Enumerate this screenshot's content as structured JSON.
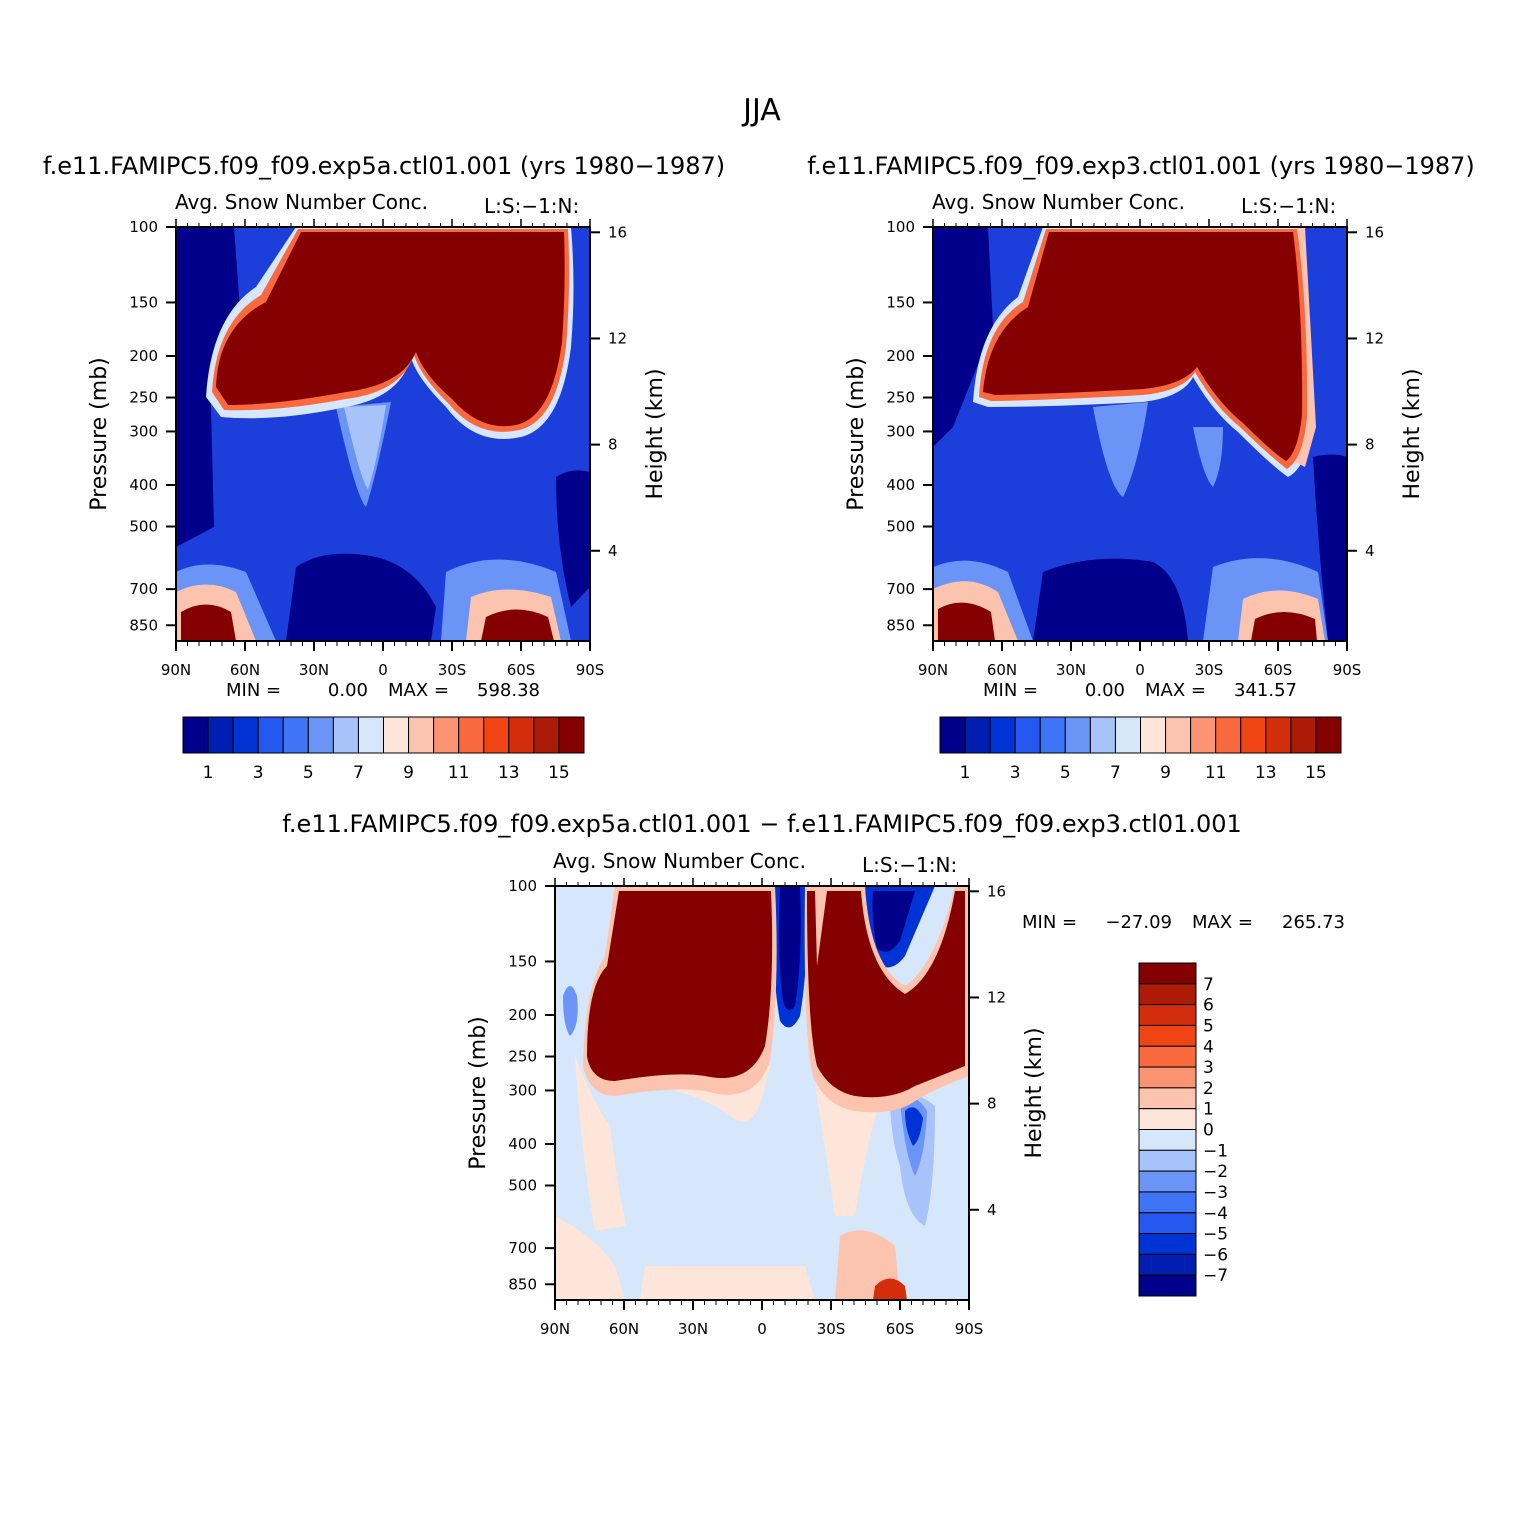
{
  "figure": {
    "season_title": "JJA",
    "diff_title": "f.e11.FAMIPC5.f09_f09.exp5a.ctl01.001 − f.e11.FAMIPC5.f09_f09.exp3.ctl01.001"
  },
  "colors": {
    "abs_scale": [
      "#00008b",
      "#001fb0",
      "#0033d6",
      "#2458f0",
      "#3e74f5",
      "#6b94f7",
      "#a8c2fa",
      "#d6e6fb",
      "#fde6d9",
      "#fcc4ae",
      "#fa9473",
      "#f86a3e",
      "#f04414",
      "#d42d0c",
      "#ac1a08",
      "#850000"
    ],
    "diff_scale": [
      "#00008b",
      "#001fb0",
      "#0033d6",
      "#2458f0",
      "#3e74f5",
      "#6b94f7",
      "#a8c2fa",
      "#d6e6fb",
      "#fde6d9",
      "#fcc4ae",
      "#fa9473",
      "#f86a3e",
      "#f04414",
      "#d42d0c",
      "#ac1a08",
      "#850000"
    ]
  },
  "chart_data": [
    {
      "type": "contour",
      "run_title": "f.e11.FAMIPC5.f09_f09.exp5a.ctl01.001 (yrs 1980−1987)",
      "variable_label": "Avg. Snow Number Conc.",
      "units_label": "L:S:−1:N:",
      "xlabel": "",
      "ylabel": "Pressure (mb)",
      "y2label": "Height (km)",
      "x_ticks": [
        "90N",
        "60N",
        "30N",
        "0",
        "30S",
        "60S",
        "90S"
      ],
      "y_ticks": [
        100,
        150,
        200,
        250,
        300,
        400,
        500,
        700,
        850
      ],
      "y2_ticks": [
        16,
        12,
        8,
        4
      ],
      "xlim": [
        90,
        -90
      ],
      "ylim": [
        100,
        925
      ],
      "stats": {
        "min_label": "MIN =",
        "min_value": "0.00",
        "max_label": "MAX =",
        "max_value": "598.38"
      },
      "colorbar": {
        "orientation": "horizontal",
        "labels": [
          "1",
          "3",
          "5",
          "7",
          "9",
          "11",
          "13",
          "15"
        ]
      }
    },
    {
      "type": "contour",
      "run_title": "f.e11.FAMIPC5.f09_f09.exp3.ctl01.001 (yrs 1980−1987)",
      "variable_label": "Avg. Snow Number Conc.",
      "units_label": "L:S:−1:N:",
      "xlabel": "",
      "ylabel": "Pressure (mb)",
      "y2label": "Height (km)",
      "x_ticks": [
        "90N",
        "60N",
        "30N",
        "0",
        "30S",
        "60S",
        "90S"
      ],
      "y_ticks": [
        100,
        150,
        200,
        250,
        300,
        400,
        500,
        700,
        850
      ],
      "y2_ticks": [
        16,
        12,
        8,
        4
      ],
      "xlim": [
        90,
        -90
      ],
      "ylim": [
        100,
        925
      ],
      "stats": {
        "min_label": "MIN =",
        "min_value": "0.00",
        "max_label": "MAX =",
        "max_value": "341.57"
      },
      "colorbar": {
        "orientation": "horizontal",
        "labels": [
          "1",
          "3",
          "5",
          "7",
          "9",
          "11",
          "13",
          "15"
        ]
      }
    },
    {
      "type": "contour",
      "run_title": "",
      "variable_label": "Avg. Snow Number Conc.",
      "units_label": "L:S:−1:N:",
      "xlabel": "",
      "ylabel": "Pressure (mb)",
      "y2label": "Height (km)",
      "x_ticks": [
        "90N",
        "60N",
        "30N",
        "0",
        "30S",
        "60S",
        "90S"
      ],
      "y_ticks": [
        100,
        150,
        200,
        250,
        300,
        400,
        500,
        700,
        850
      ],
      "y2_ticks": [
        16,
        12,
        8,
        4
      ],
      "xlim": [
        90,
        -90
      ],
      "ylim": [
        100,
        925
      ],
      "stats": {
        "min_label": "MIN =",
        "min_value": "−27.09",
        "max_label": "MAX =",
        "max_value": "265.73"
      },
      "colorbar": {
        "orientation": "vertical",
        "labels": [
          "7",
          "6",
          "5",
          "4",
          "3",
          "2",
          "1",
          "0",
          "−1",
          "−2",
          "−3",
          "−4",
          "−5",
          "−6",
          "−7"
        ]
      }
    }
  ]
}
